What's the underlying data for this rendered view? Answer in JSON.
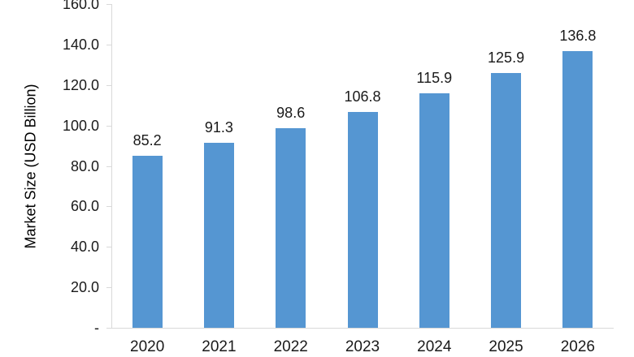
{
  "chart_data": {
    "type": "bar",
    "title": "",
    "xlabel": "",
    "ylabel": "Market Size (USD Billion)",
    "categories": [
      "2020",
      "2021",
      "2022",
      "2023",
      "2024",
      "2025",
      "2026"
    ],
    "values": [
      85.2,
      91.3,
      98.6,
      106.8,
      115.9,
      125.9,
      136.8
    ],
    "data_labels": [
      "85.2",
      "91.3",
      "98.6",
      "106.8",
      "115.9",
      "125.9",
      "136.8"
    ],
    "ylim": [
      0,
      160
    ],
    "ytick_values": [
      0,
      20,
      40,
      60,
      80,
      100,
      120,
      140,
      160
    ],
    "ytick_labels": [
      "-",
      "20.0",
      "40.0",
      "60.0",
      "80.0",
      "100.0",
      "120.0",
      "140.0",
      "160.0"
    ],
    "grid": false,
    "legend": null,
    "bar_color": "#5596d2",
    "axis_color": "#d9d9d9",
    "text_color": "#1a1a1a"
  }
}
